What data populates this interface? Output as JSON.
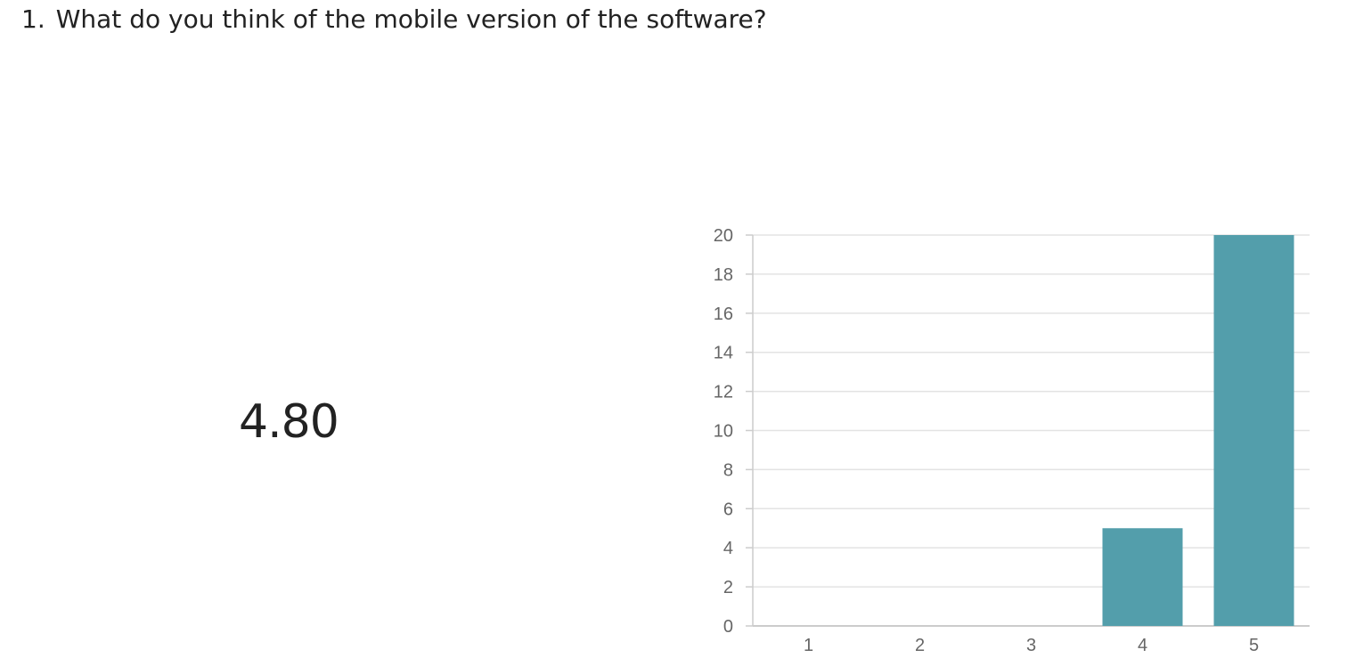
{
  "question": {
    "number": "1.",
    "text": "What do you think of the mobile version of the software?"
  },
  "summary": {
    "average": "4.80"
  },
  "colors": {
    "bar": "#539EAB",
    "grid": "#E3E3E3",
    "axis": "#CCCCCC",
    "tick_label": "#666666",
    "text": "#222222"
  },
  "chart_data": {
    "type": "bar",
    "categories": [
      "1",
      "2",
      "3",
      "4",
      "5"
    ],
    "values": [
      0,
      0,
      0,
      5,
      20
    ],
    "ylim": [
      0,
      20
    ],
    "yticks": [
      0,
      2,
      4,
      6,
      8,
      10,
      12,
      14,
      16,
      18,
      20
    ],
    "grid": true,
    "xlabel": "",
    "ylabel": ""
  }
}
